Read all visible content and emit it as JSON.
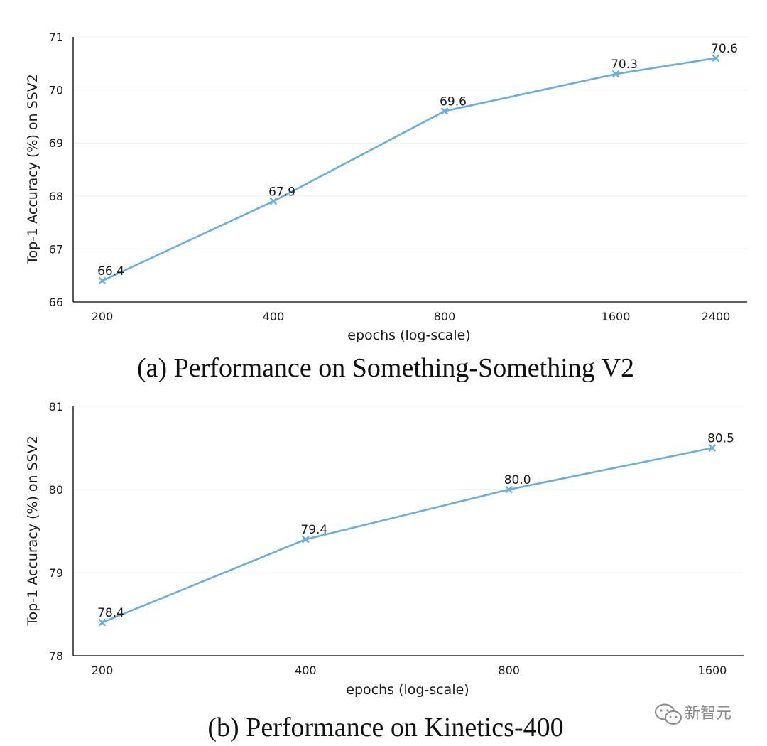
{
  "chart_data": [
    {
      "type": "line",
      "caption": "(a) Performance on Something-Something V2",
      "xlabel": "epochs (log-scale)",
      "ylabel": "Top-1 Accuracy (%) on SSV2",
      "x_scale": "log",
      "x": [
        200,
        400,
        800,
        1600,
        2400
      ],
      "x_tick_labels": [
        "200",
        "400",
        "800",
        "1600",
        "2400"
      ],
      "ylim": [
        66,
        71
      ],
      "y_ticks": [
        66,
        67,
        68,
        69,
        70,
        71
      ],
      "y_tick_labels": [
        "66",
        "67",
        "68",
        "69",
        "70",
        "71"
      ],
      "grid": "horizontal",
      "series": [
        {
          "values": [
            66.4,
            67.9,
            69.6,
            70.3,
            70.6
          ],
          "labels": [
            "66.4",
            "67.9",
            "69.6",
            "70.3",
            "70.6"
          ],
          "color": "#6aaee0",
          "marker": "x"
        }
      ]
    },
    {
      "type": "line",
      "caption": "(b) Performance on Kinetics-400",
      "xlabel": "epochs (log-scale)",
      "ylabel": "Top-1 Accuracy (%) on SSV2",
      "x_scale": "log",
      "x": [
        200,
        400,
        800,
        1600
      ],
      "x_tick_labels": [
        "200",
        "400",
        "800",
        "1600"
      ],
      "ylim": [
        78,
        81
      ],
      "y_ticks": [
        78,
        79,
        80,
        81
      ],
      "y_tick_labels": [
        "78",
        "79",
        "80",
        "81"
      ],
      "grid": "horizontal",
      "series": [
        {
          "values": [
            78.4,
            79.4,
            80.0,
            80.5
          ],
          "labels": [
            "78.4",
            "79.4",
            "80.0",
            "80.5"
          ],
          "color": "#6aaee0",
          "marker": "x"
        }
      ]
    }
  ],
  "watermark": {
    "text": "新智元",
    "icon": "wechat-icon"
  }
}
